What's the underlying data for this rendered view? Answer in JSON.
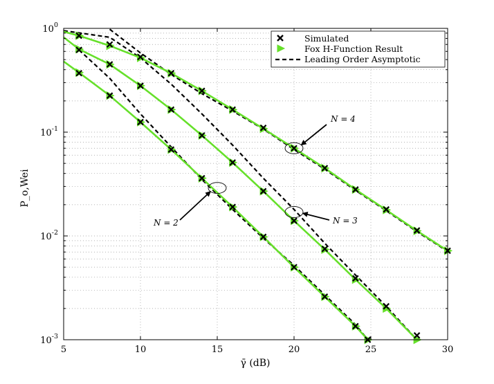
{
  "chart_data": {
    "type": "line",
    "title": "",
    "xlabel": "γ̄ (dB)",
    "ylabel": "P_o,Wei",
    "xlim": [
      5,
      30
    ],
    "ylim": [
      0.001,
      1
    ],
    "y_scale": "log",
    "grid": true,
    "legend_position": "top-right",
    "x_ticks": [
      5,
      10,
      15,
      20,
      25,
      30
    ],
    "x_tick_labels": [
      "5",
      "10",
      "15",
      "20",
      "25",
      "30"
    ],
    "y_ticks": [
      0.001,
      0.01,
      0.1,
      1
    ],
    "y_tick_labels": [
      "10^-3",
      "10^-2",
      "10^-1",
      "10^0"
    ],
    "legend": [
      {
        "label": "Simulated",
        "style": "marker-x",
        "color": "#000000"
      },
      {
        "label": "Fox H-Function Result",
        "style": "marker-triangle",
        "color": "#66e02a"
      },
      {
        "label": "Leading Order Asymptotic",
        "style": "dashed",
        "color": "#000000"
      }
    ],
    "series": [
      {
        "group": "N = 2",
        "x": [
          5,
          6,
          8,
          10,
          12,
          14,
          16,
          18,
          20,
          22,
          24,
          24.8
        ],
        "simulated": [
          null,
          0.37,
          0.225,
          0.125,
          0.068,
          0.036,
          0.019,
          0.0098,
          0.005,
          0.0026,
          0.00135,
          0.001
        ],
        "fox_h": [
          0.48,
          0.375,
          0.225,
          0.125,
          0.068,
          0.036,
          0.019,
          0.0098,
          0.005,
          0.0026,
          0.00135,
          0.001
        ],
        "asymptotic_x": [
          6,
          8,
          10,
          12,
          14,
          16,
          18,
          20,
          22,
          24,
          24.8
        ],
        "asymptotic": [
          0.62,
          0.33,
          0.15,
          0.072,
          0.035,
          0.018,
          0.0095,
          0.0052,
          0.0027,
          0.0014,
          0.001
        ]
      },
      {
        "group": "N = 3",
        "x": [
          5,
          6,
          8,
          10,
          12,
          14,
          16,
          18,
          20,
          22,
          24,
          26,
          28
        ],
        "simulated": [
          null,
          0.62,
          0.45,
          0.28,
          0.165,
          0.093,
          0.051,
          0.027,
          0.014,
          0.0075,
          0.0039,
          0.0021,
          0.0011
        ],
        "fox_h": [
          0.82,
          0.63,
          0.45,
          0.28,
          0.165,
          0.093,
          0.051,
          0.027,
          0.014,
          0.0074,
          0.0038,
          0.002,
          0.001
        ],
        "asymptotic_x": [
          5,
          8,
          10,
          12,
          14,
          16,
          18,
          20,
          22,
          24,
          26,
          28
        ],
        "asymptotic": [
          0.95,
          0.82,
          0.52,
          0.29,
          0.15,
          0.075,
          0.036,
          0.018,
          0.0085,
          0.0042,
          0.0021,
          0.001
        ]
      },
      {
        "group": "N = 4",
        "x": [
          5,
          6,
          8,
          10,
          12,
          14,
          16,
          18,
          20,
          22,
          24,
          26,
          28,
          30
        ],
        "simulated": [
          null,
          0.85,
          0.7,
          0.53,
          0.37,
          0.25,
          0.165,
          0.11,
          0.07,
          0.045,
          0.028,
          0.018,
          0.0113,
          0.0072
        ],
        "fox_h": [
          0.93,
          0.85,
          0.68,
          0.52,
          0.37,
          0.25,
          0.165,
          0.108,
          0.07,
          0.045,
          0.028,
          0.0178,
          0.0112,
          0.0072
        ],
        "asymptotic_x": [
          8,
          10,
          12,
          14,
          16,
          18,
          20,
          22,
          24,
          26,
          28,
          30
        ],
        "asymptotic": [
          0.98,
          0.58,
          0.36,
          0.235,
          0.16,
          0.107,
          0.068,
          0.044,
          0.0275,
          0.0175,
          0.011,
          0.0071
        ]
      }
    ],
    "annotations": [
      {
        "text": "N = 4",
        "points_to": [
          20,
          0.07
        ]
      },
      {
        "text": "N = 3",
        "points_to": [
          20,
          0.017
        ]
      },
      {
        "text": "N = 2",
        "points_to": [
          15,
          0.029
        ]
      }
    ]
  }
}
